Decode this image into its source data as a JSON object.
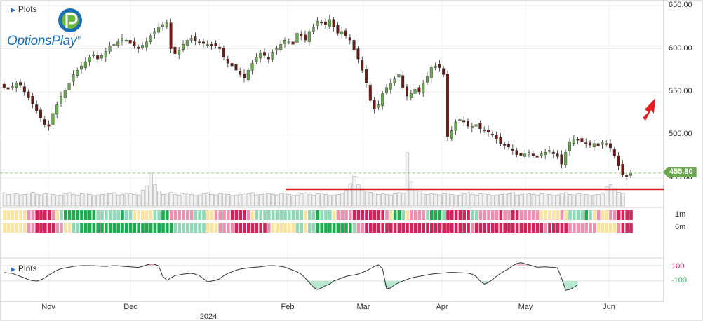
{
  "toolbar": {
    "plots_label": "Plots",
    "plots_label_lower": "Plots"
  },
  "logo": {
    "brand_text": "OptionsPlay",
    "trademark": "®"
  },
  "price_axis": {
    "ticks": [
      "650.00",
      "600.00",
      "550.00",
      "500.00",
      "450.00"
    ],
    "current_price": "455.80"
  },
  "time_axis": {
    "months": [
      "Nov",
      "Dec",
      "Feb",
      "Mar",
      "Apr",
      "May",
      "Jun"
    ],
    "year": "2024"
  },
  "rows": {
    "short_term_label": "1m",
    "long_term_label": "6m"
  },
  "oscillator": {
    "upper_label": "100",
    "lower_label": "-100"
  },
  "colors": {
    "bull": "#6aa84f",
    "bear": "#6b1b15",
    "support_line": "#dd2222",
    "arrow": "#e02020",
    "strong_bull": "#1faa4f",
    "weak_bull": "#8fd9b6",
    "neutral": "#fbe3a0",
    "weak_bear": "#ef8fb0",
    "strong_bear": "#d4235a"
  },
  "chart_data": {
    "type": "candlestick",
    "series_summary": "daily OHLC, Oct 2023 - Jun 2024",
    "ylim": [
      430,
      655
    ],
    "y_ticks": [
      450,
      500,
      550,
      600,
      650
    ],
    "support_level": 437,
    "current_price": 455.8,
    "trend_arrow": "up",
    "closes": [
      555,
      553,
      556,
      560,
      558,
      550,
      543,
      536,
      528,
      520,
      512,
      510,
      525,
      535,
      545,
      552,
      560,
      570,
      575,
      580,
      585,
      590,
      593,
      588,
      592,
      597,
      603,
      605,
      608,
      612,
      610,
      606,
      603,
      600,
      604,
      608,
      615,
      620,
      625,
      628,
      630,
      600,
      594,
      598,
      605,
      610,
      612,
      609,
      607,
      606,
      605,
      604,
      603,
      600,
      590,
      583,
      580,
      575,
      570,
      566,
      575,
      583,
      590,
      595,
      592,
      588,
      596,
      600,
      605,
      610,
      608,
      605,
      618,
      615,
      610,
      620,
      625,
      632,
      630,
      628,
      634,
      625,
      618,
      620,
      615,
      610,
      598,
      588,
      575,
      560,
      540,
      530,
      535,
      548,
      555,
      560,
      565,
      570,
      555,
      545,
      548,
      553,
      550,
      560,
      568,
      578,
      580,
      578,
      570,
      498,
      505,
      515,
      518,
      515,
      510,
      510,
      512,
      507,
      505,
      503,
      500,
      495,
      490,
      488,
      486,
      482,
      477,
      476,
      478,
      480,
      476,
      474,
      478,
      480,
      482,
      478,
      475,
      466,
      480,
      492,
      495,
      494,
      492,
      490,
      488,
      490,
      487,
      491,
      489,
      485,
      476,
      464,
      454,
      452,
      455.8
    ],
    "volume": [
      0.25,
      0.22,
      0.24,
      0.23,
      0.21,
      0.22,
      0.24,
      0.26,
      0.22,
      0.21,
      0.23,
      0.24,
      0.22,
      0.2,
      0.21,
      0.23,
      0.25,
      0.22,
      0.21,
      0.23,
      0.24,
      0.22,
      0.2,
      0.21,
      0.22,
      0.24,
      0.23,
      0.25,
      0.21,
      0.22,
      0.24,
      0.23,
      0.22,
      0.21,
      0.3,
      0.38,
      0.62,
      0.4,
      0.28,
      0.22,
      0.24,
      0.26,
      0.22,
      0.21,
      0.23,
      0.24,
      0.22,
      0.2,
      0.21,
      0.23,
      0.25,
      0.22,
      0.21,
      0.23,
      0.24,
      0.22,
      0.2,
      0.21,
      0.22,
      0.24,
      0.23,
      0.25,
      0.21,
      0.22,
      0.24,
      0.23,
      0.22,
      0.21,
      0.23,
      0.24,
      0.22,
      0.2,
      0.21,
      0.23,
      0.25,
      0.22,
      0.21,
      0.23,
      0.24,
      0.22,
      0.2,
      0.21,
      0.22,
      0.24,
      0.3,
      0.42,
      0.56,
      0.4,
      0.32,
      0.28,
      0.26,
      0.24,
      0.22,
      0.23,
      0.22,
      0.21,
      0.23,
      0.25,
      0.24,
      1.0,
      0.46,
      0.32,
      0.28,
      0.24,
      0.22,
      0.23,
      0.22,
      0.21,
      0.23,
      0.24,
      0.22,
      0.2,
      0.21,
      0.23,
      0.25,
      0.22,
      0.21,
      0.23,
      0.24,
      0.22,
      0.2,
      0.21,
      0.22,
      0.24,
      0.23,
      0.25,
      0.21,
      0.22,
      0.24,
      0.23,
      0.22,
      0.21,
      0.23,
      0.24,
      0.22,
      0.2,
      0.21,
      0.23,
      0.25,
      0.22,
      0.21,
      0.23,
      0.24,
      0.22,
      0.2,
      0.21,
      0.22,
      0.24,
      0.36,
      0.4,
      0.33,
      0.26,
      0.24
    ],
    "oscillator": [
      10,
      5,
      0,
      -20,
      -40,
      -60,
      -80,
      -95,
      -100,
      -85,
      -60,
      -20,
      10,
      40,
      60,
      70,
      80,
      90,
      95,
      100,
      100,
      100,
      100,
      96,
      92,
      90,
      95,
      100,
      98,
      92,
      88,
      84,
      80,
      76,
      90,
      108,
      122,
      118,
      96,
      -40,
      -90,
      -60,
      -30,
      -20,
      -10,
      -5,
      0,
      -10,
      -30,
      -70,
      -110,
      -100,
      -90,
      -70,
      -30,
      0,
      20,
      40,
      55,
      62,
      70,
      76,
      80,
      85,
      92,
      99,
      100,
      96,
      90,
      80,
      60,
      40,
      20,
      -10,
      -60,
      -120,
      -180,
      -210,
      -190,
      -160,
      -140,
      -100,
      -80,
      -60,
      -40,
      -30,
      -20,
      -10,
      10,
      30,
      60,
      90,
      110,
      60,
      -200,
      -190,
      -150,
      -120,
      -100,
      -80,
      -60,
      -50,
      -40,
      -30,
      -20,
      -10,
      -5,
      0,
      5,
      10,
      12,
      10,
      8,
      6,
      2,
      -10,
      -40,
      -100,
      -140,
      -120,
      -80,
      -40,
      0,
      30,
      60,
      100,
      128,
      140,
      125,
      110,
      95,
      80,
      82,
      84,
      80,
      78,
      70,
      -60,
      -220,
      -210,
      -180,
      -150
    ]
  }
}
